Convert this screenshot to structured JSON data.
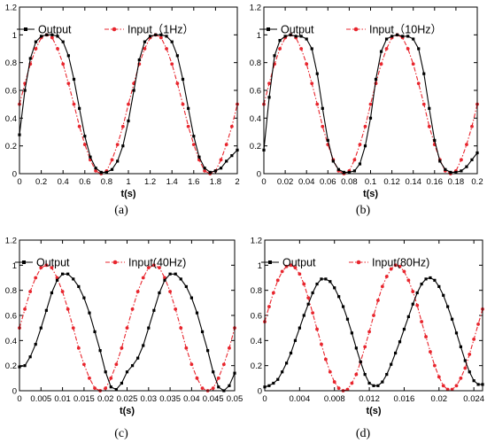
{
  "chart_data": [
    {
      "type": "line",
      "caption": "(a)",
      "xlabel": "t(s)",
      "xlim": [
        0,
        2
      ],
      "ylim": [
        0,
        1.2
      ],
      "xticks": [
        "0",
        "0.2",
        "0.4",
        "0.6",
        "0.8",
        "1",
        "1.2",
        "1.4",
        "1.6",
        "1.8",
        "2"
      ],
      "yticks": [
        "0",
        "0.2",
        "0.4",
        "0.6",
        "0.8",
        "1",
        "1.2"
      ],
      "series": [
        {
          "name": "Output",
          "color": "#000000",
          "marker": "square",
          "style": "solid",
          "x": [
            0,
            0.05,
            0.1,
            0.15,
            0.2,
            0.25,
            0.3,
            0.35,
            0.4,
            0.45,
            0.5,
            0.55,
            0.6,
            0.65,
            0.7,
            0.75,
            0.8,
            0.85,
            0.9,
            0.95,
            1,
            1.05,
            1.1,
            1.15,
            1.2,
            1.25,
            1.3,
            1.35,
            1.4,
            1.45,
            1.5,
            1.55,
            1.6,
            1.65,
            1.7,
            1.75,
            1.8,
            1.85,
            1.9,
            1.95,
            2
          ],
          "y": [
            0.28,
            0.6,
            0.83,
            0.95,
            0.99,
            1.0,
            1.0,
            0.99,
            0.95,
            0.85,
            0.68,
            0.47,
            0.27,
            0.12,
            0.04,
            0.01,
            0.01,
            0.03,
            0.09,
            0.2,
            0.38,
            0.6,
            0.82,
            0.95,
            0.99,
            1.0,
            1.0,
            0.99,
            0.95,
            0.85,
            0.68,
            0.47,
            0.27,
            0.12,
            0.04,
            0.01,
            0.02,
            0.04,
            0.09,
            0.13,
            0.17
          ]
        },
        {
          "name": "Input（1Hz）",
          "color": "#e8252d",
          "marker": "circle",
          "style": "dashdot",
          "x": [
            0,
            0.05,
            0.1,
            0.15,
            0.2,
            0.25,
            0.3,
            0.35,
            0.4,
            0.45,
            0.5,
            0.55,
            0.6,
            0.65,
            0.7,
            0.75,
            0.8,
            0.85,
            0.9,
            0.95,
            1,
            1.05,
            1.1,
            1.15,
            1.2,
            1.25,
            1.3,
            1.35,
            1.4,
            1.45,
            1.5,
            1.55,
            1.6,
            1.65,
            1.7,
            1.75,
            1.8,
            1.85,
            1.9,
            1.95,
            2
          ],
          "y": [
            0.5,
            0.65,
            0.79,
            0.9,
            0.98,
            1.0,
            0.98,
            0.9,
            0.79,
            0.65,
            0.5,
            0.34,
            0.21,
            0.1,
            0.02,
            0.0,
            0.02,
            0.1,
            0.21,
            0.34,
            0.5,
            0.65,
            0.79,
            0.9,
            0.98,
            1.0,
            0.98,
            0.9,
            0.79,
            0.65,
            0.5,
            0.34,
            0.21,
            0.1,
            0.02,
            0.0,
            0.02,
            0.1,
            0.21,
            0.34,
            0.5
          ]
        }
      ],
      "legend": "top"
    },
    {
      "type": "line",
      "caption": "(b)",
      "xlabel": "t(s)",
      "xlim": [
        0,
        0.2
      ],
      "ylim": [
        0,
        1.2
      ],
      "xticks": [
        "0",
        "0.02",
        "0.04",
        "0.06",
        "0.08",
        "0.1",
        "0.12",
        "0.14",
        "0.16",
        "0.18",
        "0.2"
      ],
      "yticks": [
        "0",
        "0.2",
        "0.4",
        "0.6",
        "0.8",
        "1",
        "1.2"
      ],
      "series": [
        {
          "name": "Output",
          "color": "#000000",
          "marker": "square",
          "style": "solid",
          "x": [
            0,
            0.005,
            0.01,
            0.015,
            0.02,
            0.025,
            0.03,
            0.035,
            0.04,
            0.045,
            0.05,
            0.055,
            0.06,
            0.065,
            0.07,
            0.075,
            0.08,
            0.085,
            0.09,
            0.095,
            0.1,
            0.105,
            0.11,
            0.115,
            0.12,
            0.125,
            0.13,
            0.135,
            0.14,
            0.145,
            0.15,
            0.155,
            0.16,
            0.165,
            0.17,
            0.175,
            0.18,
            0.185,
            0.19,
            0.195,
            0.2
          ],
          "y": [
            0.17,
            0.55,
            0.85,
            0.96,
            0.99,
            1.0,
            0.99,
            0.99,
            0.97,
            0.9,
            0.72,
            0.47,
            0.24,
            0.09,
            0.03,
            0.01,
            0.01,
            0.02,
            0.07,
            0.2,
            0.4,
            0.68,
            0.88,
            0.97,
            0.99,
            1.0,
            0.99,
            0.99,
            0.97,
            0.9,
            0.72,
            0.47,
            0.24,
            0.09,
            0.03,
            0.01,
            0.01,
            0.02,
            0.05,
            0.1,
            0.15
          ]
        },
        {
          "name": "Input（10Hz）",
          "color": "#e8252d",
          "marker": "circle",
          "style": "dashdot",
          "x": [
            0,
            0.005,
            0.01,
            0.015,
            0.02,
            0.025,
            0.03,
            0.035,
            0.04,
            0.045,
            0.05,
            0.055,
            0.06,
            0.065,
            0.07,
            0.075,
            0.08,
            0.085,
            0.09,
            0.095,
            0.1,
            0.105,
            0.11,
            0.115,
            0.12,
            0.125,
            0.13,
            0.135,
            0.14,
            0.145,
            0.15,
            0.155,
            0.16,
            0.165,
            0.17,
            0.175,
            0.18,
            0.185,
            0.19,
            0.195,
            0.2
          ],
          "y": [
            0.5,
            0.65,
            0.79,
            0.9,
            0.98,
            1.0,
            0.98,
            0.9,
            0.79,
            0.65,
            0.5,
            0.34,
            0.21,
            0.1,
            0.02,
            0.0,
            0.02,
            0.1,
            0.21,
            0.34,
            0.5,
            0.65,
            0.79,
            0.9,
            0.98,
            1.0,
            0.98,
            0.9,
            0.79,
            0.65,
            0.5,
            0.34,
            0.21,
            0.1,
            0.02,
            0.0,
            0.02,
            0.1,
            0.21,
            0.34,
            0.5
          ]
        }
      ],
      "legend": "top"
    },
    {
      "type": "line",
      "caption": "(c)",
      "xlabel": "t(s)",
      "xlim": [
        0,
        0.05
      ],
      "ylim": [
        0,
        1.2
      ],
      "xticks": [
        "0",
        "0.005",
        "0.01",
        "0.015",
        "0.02",
        "0.025",
        "0.03",
        "0.035",
        "0.04",
        "0.045",
        "0.05"
      ],
      "yticks": [
        "0",
        "0.2",
        "0.4",
        "0.6",
        "0.8",
        "1",
        "1.2"
      ],
      "series": [
        {
          "name": "Output",
          "color": "#000000",
          "marker": "square",
          "style": "solid",
          "x": [
            0,
            0.00125,
            0.0025,
            0.00375,
            0.005,
            0.00625,
            0.0075,
            0.00875,
            0.01,
            0.01125,
            0.0125,
            0.01375,
            0.015,
            0.01625,
            0.0175,
            0.01875,
            0.02,
            0.02125,
            0.0225,
            0.02375,
            0.025,
            0.02625,
            0.0275,
            0.02875,
            0.03,
            0.03125,
            0.0325,
            0.03375,
            0.035,
            0.03625,
            0.0375,
            0.03875,
            0.04,
            0.04125,
            0.0425,
            0.04375,
            0.045,
            0.04625,
            0.0475,
            0.04875,
            0.05
          ],
          "y": [
            0.19,
            0.2,
            0.27,
            0.37,
            0.5,
            0.64,
            0.78,
            0.88,
            0.93,
            0.93,
            0.89,
            0.83,
            0.74,
            0.62,
            0.47,
            0.32,
            0.15,
            0.03,
            0.01,
            0.06,
            0.15,
            0.2,
            0.26,
            0.36,
            0.5,
            0.64,
            0.78,
            0.88,
            0.93,
            0.93,
            0.89,
            0.83,
            0.74,
            0.62,
            0.47,
            0.32,
            0.15,
            0.03,
            0.0,
            0.04,
            0.14
          ]
        },
        {
          "name": "Input(40Hz)",
          "color": "#e8252d",
          "marker": "circle",
          "style": "dashdot",
          "x": [
            0,
            0.00125,
            0.0025,
            0.00375,
            0.005,
            0.00625,
            0.0075,
            0.00875,
            0.01,
            0.01125,
            0.0125,
            0.01375,
            0.015,
            0.01625,
            0.0175,
            0.01875,
            0.02,
            0.02125,
            0.0225,
            0.02375,
            0.025,
            0.02625,
            0.0275,
            0.02875,
            0.03,
            0.03125,
            0.0325,
            0.03375,
            0.035,
            0.03625,
            0.0375,
            0.03875,
            0.04,
            0.04125,
            0.0425,
            0.04375,
            0.045,
            0.04625,
            0.0475,
            0.04875,
            0.05
          ],
          "y": [
            0.5,
            0.65,
            0.79,
            0.9,
            0.98,
            1.0,
            0.98,
            0.9,
            0.79,
            0.65,
            0.5,
            0.34,
            0.21,
            0.1,
            0.02,
            0.0,
            0.02,
            0.1,
            0.21,
            0.34,
            0.5,
            0.65,
            0.79,
            0.9,
            0.98,
            1.0,
            0.98,
            0.9,
            0.79,
            0.65,
            0.5,
            0.34,
            0.21,
            0.1,
            0.02,
            0.0,
            0.02,
            0.1,
            0.21,
            0.34,
            0.5
          ]
        }
      ],
      "legend": "top"
    },
    {
      "type": "line",
      "caption": "(d)",
      "xlabel": "t(s)",
      "xlim": [
        0,
        0.025
      ],
      "ylim": [
        0,
        1.2
      ],
      "xticks": [
        "0",
        "0.004",
        "0.008",
        "0.012",
        "0.016",
        "0.02",
        "0.024"
      ],
      "xtick_values": [
        0,
        0.004,
        0.008,
        0.012,
        0.016,
        0.02,
        0.024
      ],
      "yticks": [
        "0",
        "0.2",
        "0.4",
        "0.6",
        "0.8",
        "1",
        "1.2"
      ],
      "series": [
        {
          "name": "Output",
          "color": "#000000",
          "marker": "square",
          "style": "solid",
          "x": [
            0,
            0.0005,
            0.001,
            0.0015,
            0.002,
            0.0025,
            0.003,
            0.0035,
            0.004,
            0.0045,
            0.005,
            0.0055,
            0.006,
            0.0065,
            0.007,
            0.0075,
            0.008,
            0.0085,
            0.009,
            0.0095,
            0.01,
            0.0105,
            0.011,
            0.0115,
            0.012,
            0.0125,
            0.013,
            0.0135,
            0.014,
            0.0145,
            0.015,
            0.0155,
            0.016,
            0.0165,
            0.017,
            0.0175,
            0.018,
            0.0185,
            0.019,
            0.0195,
            0.02,
            0.0205,
            0.021,
            0.0215,
            0.022,
            0.0225,
            0.023,
            0.0235,
            0.024,
            0.0245,
            0.025
          ],
          "y": [
            0.03,
            0.04,
            0.06,
            0.09,
            0.15,
            0.22,
            0.3,
            0.4,
            0.5,
            0.6,
            0.69,
            0.78,
            0.85,
            0.89,
            0.89,
            0.87,
            0.82,
            0.75,
            0.67,
            0.57,
            0.46,
            0.34,
            0.23,
            0.13,
            0.06,
            0.04,
            0.04,
            0.07,
            0.13,
            0.21,
            0.3,
            0.39,
            0.49,
            0.59,
            0.69,
            0.78,
            0.85,
            0.89,
            0.9,
            0.88,
            0.83,
            0.76,
            0.67,
            0.57,
            0.46,
            0.35,
            0.24,
            0.15,
            0.08,
            0.05,
            0.05
          ]
        },
        {
          "name": "Input(80Hz)",
          "color": "#e8252d",
          "marker": "circle",
          "style": "dashdot",
          "x": [
            0,
            0.0005,
            0.001,
            0.0015,
            0.002,
            0.0025,
            0.003,
            0.0035,
            0.004,
            0.0045,
            0.005,
            0.0055,
            0.006,
            0.0065,
            0.007,
            0.0075,
            0.008,
            0.0085,
            0.009,
            0.0095,
            0.01,
            0.0105,
            0.011,
            0.0115,
            0.012,
            0.0125,
            0.013,
            0.0135,
            0.014,
            0.0145,
            0.015,
            0.0155,
            0.016,
            0.0165,
            0.017,
            0.0175,
            0.018,
            0.0185,
            0.019,
            0.0195,
            0.02,
            0.0205,
            0.021,
            0.0215,
            0.022,
            0.0225,
            0.023,
            0.0235,
            0.024,
            0.0245,
            0.025
          ],
          "y": [
            0.55,
            0.67,
            0.78,
            0.88,
            0.95,
            0.99,
            1.0,
            0.98,
            0.93,
            0.85,
            0.74,
            0.62,
            0.49,
            0.37,
            0.25,
            0.15,
            0.07,
            0.02,
            0.0,
            0.01,
            0.06,
            0.13,
            0.23,
            0.35,
            0.47,
            0.6,
            0.72,
            0.83,
            0.91,
            0.97,
            1.0,
            0.99,
            0.95,
            0.88,
            0.79,
            0.68,
            0.55,
            0.43,
            0.31,
            0.2,
            0.11,
            0.04,
            0.01,
            0.01,
            0.04,
            0.1,
            0.18,
            0.29,
            0.41,
            0.53,
            0.65
          ]
        }
      ],
      "legend": "top"
    }
  ]
}
